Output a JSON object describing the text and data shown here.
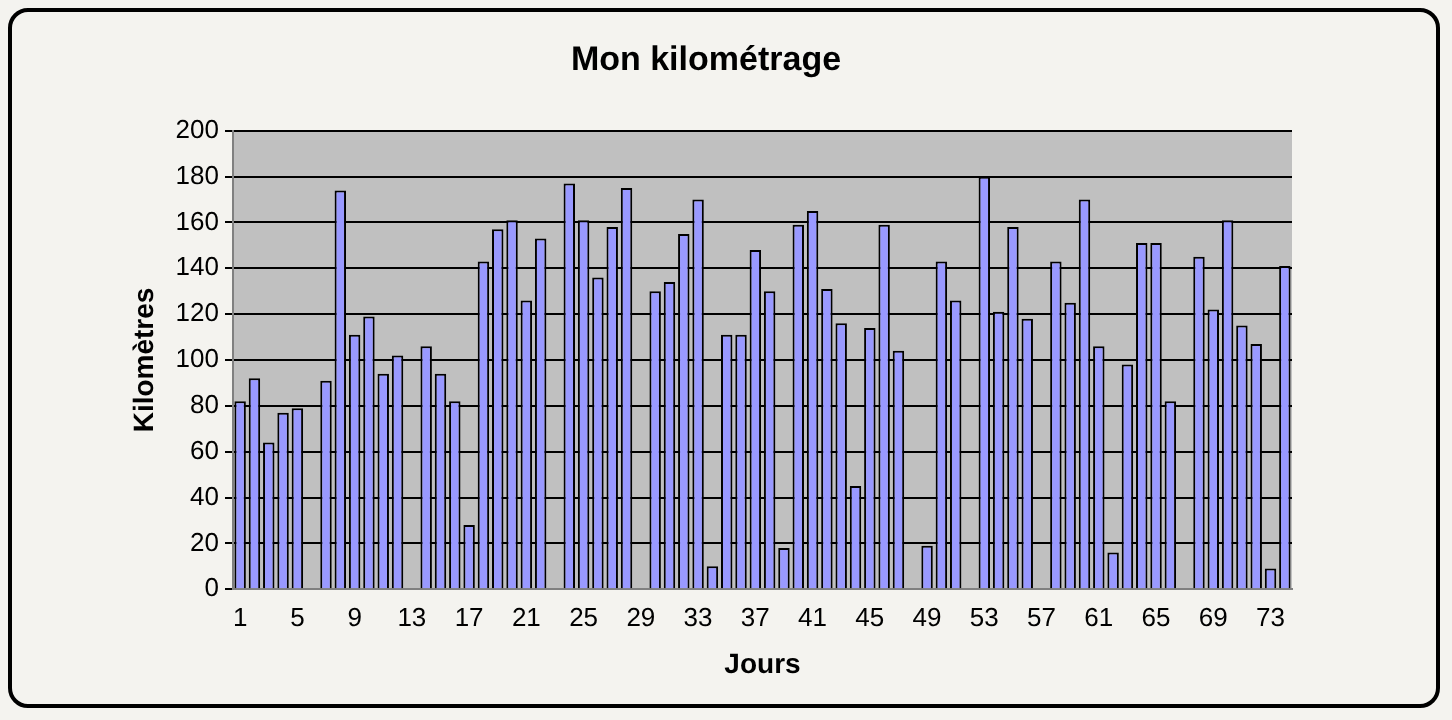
{
  "chart_data": {
    "type": "bar",
    "title": "Mon kilométrage",
    "xlabel": "Jours",
    "ylabel": "Kilomètres",
    "categories": [
      "1",
      null,
      null,
      null,
      "5",
      null,
      null,
      null,
      "9",
      null,
      null,
      null,
      "13",
      null,
      null,
      null,
      "17",
      null,
      null,
      null,
      "21",
      null,
      null,
      null,
      "25",
      null,
      null,
      null,
      "29",
      null,
      null,
      null,
      "33",
      null,
      null,
      null,
      "37",
      null,
      null,
      null,
      "41",
      null,
      null,
      null,
      "45",
      null,
      null,
      null,
      "49",
      null,
      null,
      null,
      "53",
      null,
      null,
      null,
      "57",
      null,
      null,
      null,
      "61",
      null,
      null,
      null,
      "65",
      null,
      null,
      null,
      "69",
      null,
      null,
      null,
      "73",
      null
    ],
    "values": [
      82,
      92,
      64,
      77,
      79,
      0,
      91,
      174,
      111,
      119,
      94,
      102,
      0,
      106,
      94,
      82,
      28,
      143,
      157,
      161,
      126,
      153,
      0,
      177,
      161,
      136,
      158,
      175,
      0,
      130,
      134,
      155,
      170,
      10,
      111,
      111,
      148,
      130,
      18,
      159,
      165,
      131,
      116,
      45,
      114,
      159,
      104,
      0,
      19,
      143,
      126,
      0,
      180,
      121,
      158,
      118,
      0,
      143,
      125,
      170,
      106,
      16,
      98,
      151,
      151,
      82,
      0,
      145,
      122,
      161,
      115,
      107,
      9,
      141
    ],
    "color": "#9999ff",
    "ylim": [
      0,
      200
    ],
    "yticks": [
      0,
      20,
      40,
      60,
      80,
      100,
      120,
      140,
      160,
      180,
      200
    ],
    "grid": "y",
    "legend": false
  }
}
